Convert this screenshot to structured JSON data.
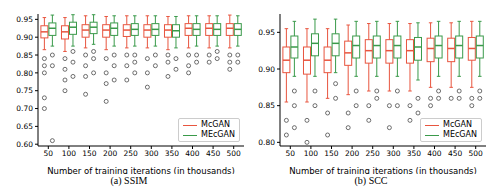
{
  "chart_data": [
    {
      "type": "box",
      "title": "(a) SSIM",
      "x_label": "Number of training iterations (in thousands)",
      "categories": [
        50,
        100,
        150,
        200,
        250,
        300,
        350,
        400,
        450,
        500
      ],
      "ylim": [
        0.595,
        0.965
      ],
      "yticks": [
        {
          "value": 0.6,
          "label": "0.60"
        },
        {
          "value": 0.65,
          "label": "0.65"
        },
        {
          "value": 0.7,
          "label": "0.70"
        },
        {
          "value": 0.75,
          "label": "0.75"
        },
        {
          "value": 0.8,
          "label": "0.80"
        },
        {
          "value": 0.85,
          "label": "0.85"
        },
        {
          "value": 0.9,
          "label": "0.90"
        },
        {
          "value": 0.95,
          "label": "0.95"
        }
      ],
      "grid": false,
      "legend": "lower right",
      "series": [
        {
          "name": "McGAN",
          "color": "#e8553f",
          "whislo": [
            0.865,
            0.86,
            0.87,
            0.865,
            0.87,
            0.87,
            0.865,
            0.87,
            0.87,
            0.87
          ],
          "q1": [
            0.898,
            0.895,
            0.9,
            0.9,
            0.902,
            0.9,
            0.9,
            0.905,
            0.905,
            0.905
          ],
          "median": [
            0.915,
            0.915,
            0.92,
            0.92,
            0.92,
            0.92,
            0.92,
            0.925,
            0.925,
            0.925
          ],
          "q3": [
            0.932,
            0.932,
            0.935,
            0.935,
            0.935,
            0.935,
            0.935,
            0.938,
            0.938,
            0.938
          ],
          "whishi": [
            0.955,
            0.955,
            0.96,
            0.958,
            0.96,
            0.96,
            0.958,
            0.96,
            0.96,
            0.962
          ],
          "fliers": [
            [
              0.84,
              0.82,
              0.8,
              0.73,
              0.7
            ],
            [
              0.84,
              0.81,
              0.78,
              0.75
            ],
            [
              0.85,
              0.82,
              0.79,
              0.74
            ],
            [
              0.84,
              0.8,
              0.77,
              0.72
            ],
            [
              0.85,
              0.82,
              0.78
            ],
            [
              0.84,
              0.8,
              0.76
            ],
            [
              0.85,
              0.83,
              0.79
            ],
            [
              0.85,
              0.82,
              0.8
            ],
            [
              0.85,
              0.83
            ],
            [
              0.85,
              0.83,
              0.81
            ]
          ]
        },
        {
          "name": "MEcGAN",
          "color": "#3a9a4a",
          "whislo": [
            0.875,
            0.875,
            0.88,
            0.875,
            0.875,
            0.875,
            0.87,
            0.875,
            0.875,
            0.875
          ],
          "q1": [
            0.905,
            0.908,
            0.91,
            0.905,
            0.905,
            0.905,
            0.9,
            0.905,
            0.905,
            0.905
          ],
          "median": [
            0.925,
            0.928,
            0.928,
            0.925,
            0.922,
            0.922,
            0.918,
            0.922,
            0.922,
            0.922
          ],
          "q3": [
            0.94,
            0.942,
            0.942,
            0.94,
            0.938,
            0.938,
            0.935,
            0.938,
            0.938,
            0.938
          ],
          "whishi": [
            0.962,
            0.963,
            0.963,
            0.96,
            0.96,
            0.96,
            0.958,
            0.96,
            0.96,
            0.96
          ],
          "fliers": [
            [
              0.85,
              0.82,
              0.61
            ],
            [
              0.86,
              0.83,
              0.79
            ],
            [
              0.86,
              0.84,
              0.8
            ],
            [
              0.85,
              0.82,
              0.78
            ],
            [
              0.85,
              0.83,
              0.8
            ],
            [
              0.85,
              0.82
            ],
            [
              0.84,
              0.81
            ],
            [
              0.85,
              0.83
            ],
            [
              0.86,
              0.84
            ],
            [
              0.85,
              0.83
            ]
          ]
        }
      ]
    },
    {
      "type": "box",
      "title": "(b) SCC",
      "x_label": "Number of training iterations (in thousands)",
      "categories": [
        50,
        100,
        150,
        200,
        250,
        300,
        350,
        400,
        450,
        500
      ],
      "ylim": [
        0.795,
        0.975
      ],
      "yticks": [
        {
          "value": 0.8,
          "label": "0.80"
        },
        {
          "value": 0.85,
          "label": "0.85"
        },
        {
          "value": 0.9,
          "label": "0.90"
        },
        {
          "value": 0.95,
          "label": "0.95"
        }
      ],
      "grid": false,
      "legend": "lower right",
      "series": [
        {
          "name": "McGAN",
          "color": "#e8553f",
          "whislo": [
            0.855,
            0.855,
            0.86,
            0.865,
            0.87,
            0.87,
            0.87,
            0.875,
            0.875,
            0.875
          ],
          "q1": [
            0.895,
            0.893,
            0.895,
            0.905,
            0.908,
            0.908,
            0.908,
            0.91,
            0.91,
            0.912
          ],
          "median": [
            0.912,
            0.912,
            0.912,
            0.922,
            0.925,
            0.925,
            0.925,
            0.928,
            0.928,
            0.928
          ],
          "q3": [
            0.93,
            0.93,
            0.93,
            0.938,
            0.94,
            0.94,
            0.94,
            0.942,
            0.942,
            0.943
          ],
          "whishi": [
            0.955,
            0.955,
            0.955,
            0.96,
            0.962,
            0.962,
            0.962,
            0.963,
            0.963,
            0.965
          ],
          "fliers": [
            [
              0.83,
              0.81
            ],
            [
              0.83,
              0.8
            ],
            [
              0.84,
              0.81
            ],
            [
              0.84,
              0.82
            ],
            [
              0.85,
              0.83
            ],
            [
              0.85,
              0.82
            ],
            [
              0.85,
              0.83
            ],
            [
              0.86,
              0.85
            ],
            [
              0.86
            ],
            [
              0.86,
              0.85
            ]
          ]
        },
        {
          "name": "MEcGAN",
          "color": "#3a9a4a",
          "whislo": [
            0.89,
            0.89,
            0.895,
            0.89,
            0.89,
            0.89,
            0.885,
            0.89,
            0.89,
            0.89
          ],
          "q1": [
            0.915,
            0.918,
            0.918,
            0.915,
            0.915,
            0.915,
            0.912,
            0.915,
            0.915,
            0.915
          ],
          "median": [
            0.93,
            0.935,
            0.935,
            0.932,
            0.932,
            0.932,
            0.93,
            0.932,
            0.932,
            0.932
          ],
          "q3": [
            0.945,
            0.948,
            0.948,
            0.945,
            0.945,
            0.945,
            0.943,
            0.945,
            0.945,
            0.945
          ],
          "whishi": [
            0.965,
            0.968,
            0.968,
            0.965,
            0.965,
            0.965,
            0.963,
            0.965,
            0.965,
            0.965
          ],
          "fliers": [
            [
              0.87,
              0.85,
              0.82
            ],
            [
              0.87,
              0.85
            ],
            [
              0.88,
              0.86
            ],
            [
              0.87,
              0.85
            ],
            [
              0.87,
              0.86
            ],
            [
              0.87,
              0.85
            ],
            [
              0.86,
              0.84
            ],
            [
              0.87,
              0.86
            ],
            [
              0.87,
              0.86
            ],
            [
              0.87,
              0.86
            ]
          ]
        }
      ]
    }
  ]
}
